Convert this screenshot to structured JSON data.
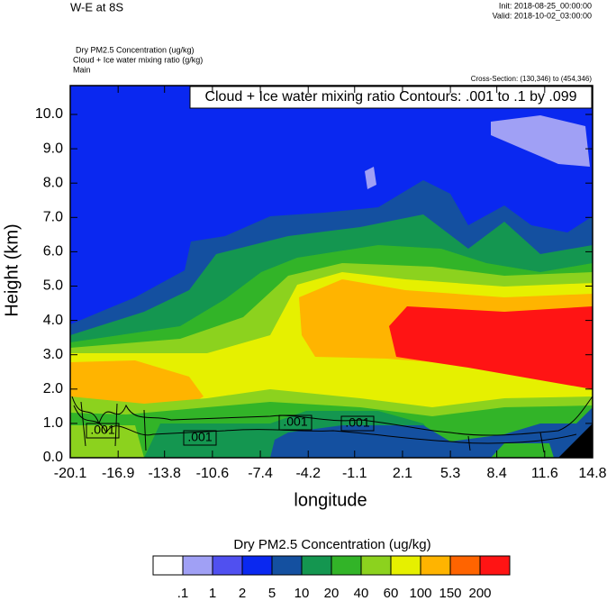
{
  "chart_data": {
    "type": "contour",
    "title": "W-E at 8S",
    "init": "Init: 2018-08-25_00:00:00",
    "valid": "Valid: 2018-10-02_03:00:00",
    "field_labels": [
      "Dry PM2.5 Concentration   (ug/kg)",
      "Cloud + Ice water mixing ratio   (g/kg)",
      "Main"
    ],
    "cross_section": "Cross-Section: (130,346) to (454,346)",
    "contour_note": "Cloud + Ice water mixing ratio Contours: .001 to .1 by .099",
    "ylabel": "Height (km)",
    "xlabel": "longitude",
    "xlim": [
      -20.1,
      14.8
    ],
    "xticks": [
      -20.1,
      -16.9,
      -13.8,
      -10.6,
      -7.4,
      -4.2,
      -1.1,
      2.1,
      5.3,
      8.4,
      11.6,
      14.8
    ],
    "ylim": [
      0,
      10.84
    ],
    "yticks": [
      {
        "value": 0,
        "label": "0.0"
      },
      {
        "value": 1,
        "label": "1.0"
      },
      {
        "value": 2,
        "label": "2.0"
      },
      {
        "value": 3,
        "label": "3.0"
      },
      {
        "value": 4,
        "label": "4.0"
      },
      {
        "value": 5,
        "label": "5.0"
      },
      {
        "value": 6,
        "label": "6.0"
      },
      {
        "value": 7,
        "label": "7.0"
      },
      {
        "value": 8,
        "label": "8.0"
      },
      {
        "value": 9,
        "label": "9.0"
      },
      {
        "value": 10,
        "label": "10.0"
      }
    ],
    "contour_labels": [
      ".001",
      ".001",
      ".001",
      ".001"
    ],
    "colorbar": {
      "title": "Dry PM2.5 Concentration  (ug/kg)",
      "colors": [
        "#ffffff",
        "#a0a0f5",
        "#5050f0",
        "#0a28f0",
        "#1450a0",
        "#149650",
        "#32b428",
        "#8cd21e",
        "#e6f000",
        "#ffb400",
        "#ff6400",
        "#ff1414"
      ],
      "levels": [
        {
          "value": 0.1,
          "label": ".1"
        },
        1,
        2,
        5,
        10,
        20,
        40,
        60,
        100,
        150,
        200
      ]
    }
  }
}
